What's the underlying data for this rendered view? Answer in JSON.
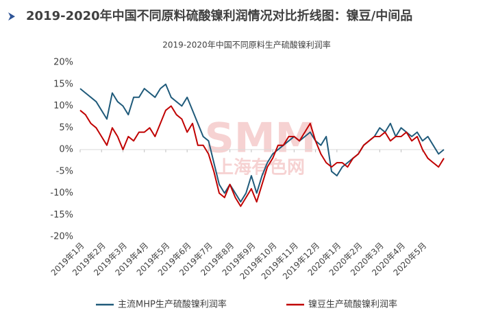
{
  "header": {
    "title": "2019-2020年中国不同原料硫酸镍利润情况对比折线图：镍豆/中间品"
  },
  "chart_data": {
    "type": "line",
    "title": "2019-2020年中国不同原料生产硫酸镍利润率",
    "watermark": [
      "SMM",
      "上海有色网"
    ],
    "categories": [
      "2019年1月",
      null,
      null,
      null,
      "2019年2月",
      null,
      null,
      null,
      "2019年3月",
      null,
      null,
      null,
      "2019年4月",
      null,
      null,
      null,
      "2019年5月",
      null,
      null,
      null,
      "2019年6月",
      null,
      null,
      null,
      "2019年7月",
      null,
      null,
      null,
      "2019年8月",
      null,
      null,
      null,
      "2019年9月",
      null,
      null,
      null,
      "2019年10月",
      null,
      null,
      null,
      "2019年11月",
      null,
      null,
      null,
      "2019年12月",
      null,
      null,
      null,
      "2020年1月",
      null,
      null,
      null,
      "2020年2月",
      null,
      null,
      null,
      "2020年3月",
      null,
      null,
      null,
      "2020年4月",
      null,
      null,
      null,
      "2020年5月",
      null,
      null,
      null,
      null
    ],
    "series": [
      {
        "name": "主流MHP生产硫酸镍利润率",
        "color": "#1f5a7a",
        "values": [
          14,
          13,
          12,
          11,
          9,
          7,
          13,
          11,
          10,
          8,
          12,
          12,
          14,
          13,
          12,
          14,
          15,
          12,
          11,
          10,
          12,
          9,
          6,
          3,
          2,
          -3,
          -8,
          -10,
          -8,
          -10,
          -12,
          -10,
          -6,
          -10,
          -6,
          -3,
          -1,
          0,
          1,
          2,
          3,
          2,
          3,
          4,
          2,
          1,
          3,
          -5,
          -6,
          -4,
          -3,
          -2,
          -1,
          1,
          2,
          3,
          5,
          4,
          6,
          3,
          5,
          4,
          3,
          4,
          2,
          3,
          1,
          -1,
          0
        ]
      },
      {
        "name": "镍豆生产硫酸镍利润率",
        "color": "#c00000",
        "values": [
          9,
          8,
          6,
          5,
          3,
          1,
          5,
          3,
          0,
          3,
          2,
          4,
          4,
          5,
          3,
          6,
          9,
          10,
          8,
          7,
          4,
          6,
          1,
          1,
          -1,
          -5,
          -10,
          -11,
          -8,
          -11,
          -13,
          -11,
          -9,
          -12,
          -8,
          -4,
          -2,
          1,
          1,
          3,
          3,
          2,
          4,
          6,
          2,
          -1,
          -3,
          -4,
          -3,
          -3,
          -4,
          -2,
          -1,
          1,
          2,
          3,
          3,
          4,
          2,
          3,
          3,
          4,
          2,
          3,
          0,
          -2,
          -3,
          -4,
          -2
        ]
      }
    ],
    "ylim": [
      -20,
      20
    ],
    "yticks": [
      {
        "value": -20,
        "label": "-20%"
      },
      {
        "value": -15,
        "label": "-15%"
      },
      {
        "value": -10,
        "label": "-10%"
      },
      {
        "value": -5,
        "label": "-5%"
      },
      {
        "value": 0,
        "label": "0%"
      },
      {
        "value": 5,
        "label": "5%"
      },
      {
        "value": 10,
        "label": "10%"
      },
      {
        "value": 15,
        "label": "15%"
      },
      {
        "value": 20,
        "label": "20%"
      }
    ]
  }
}
